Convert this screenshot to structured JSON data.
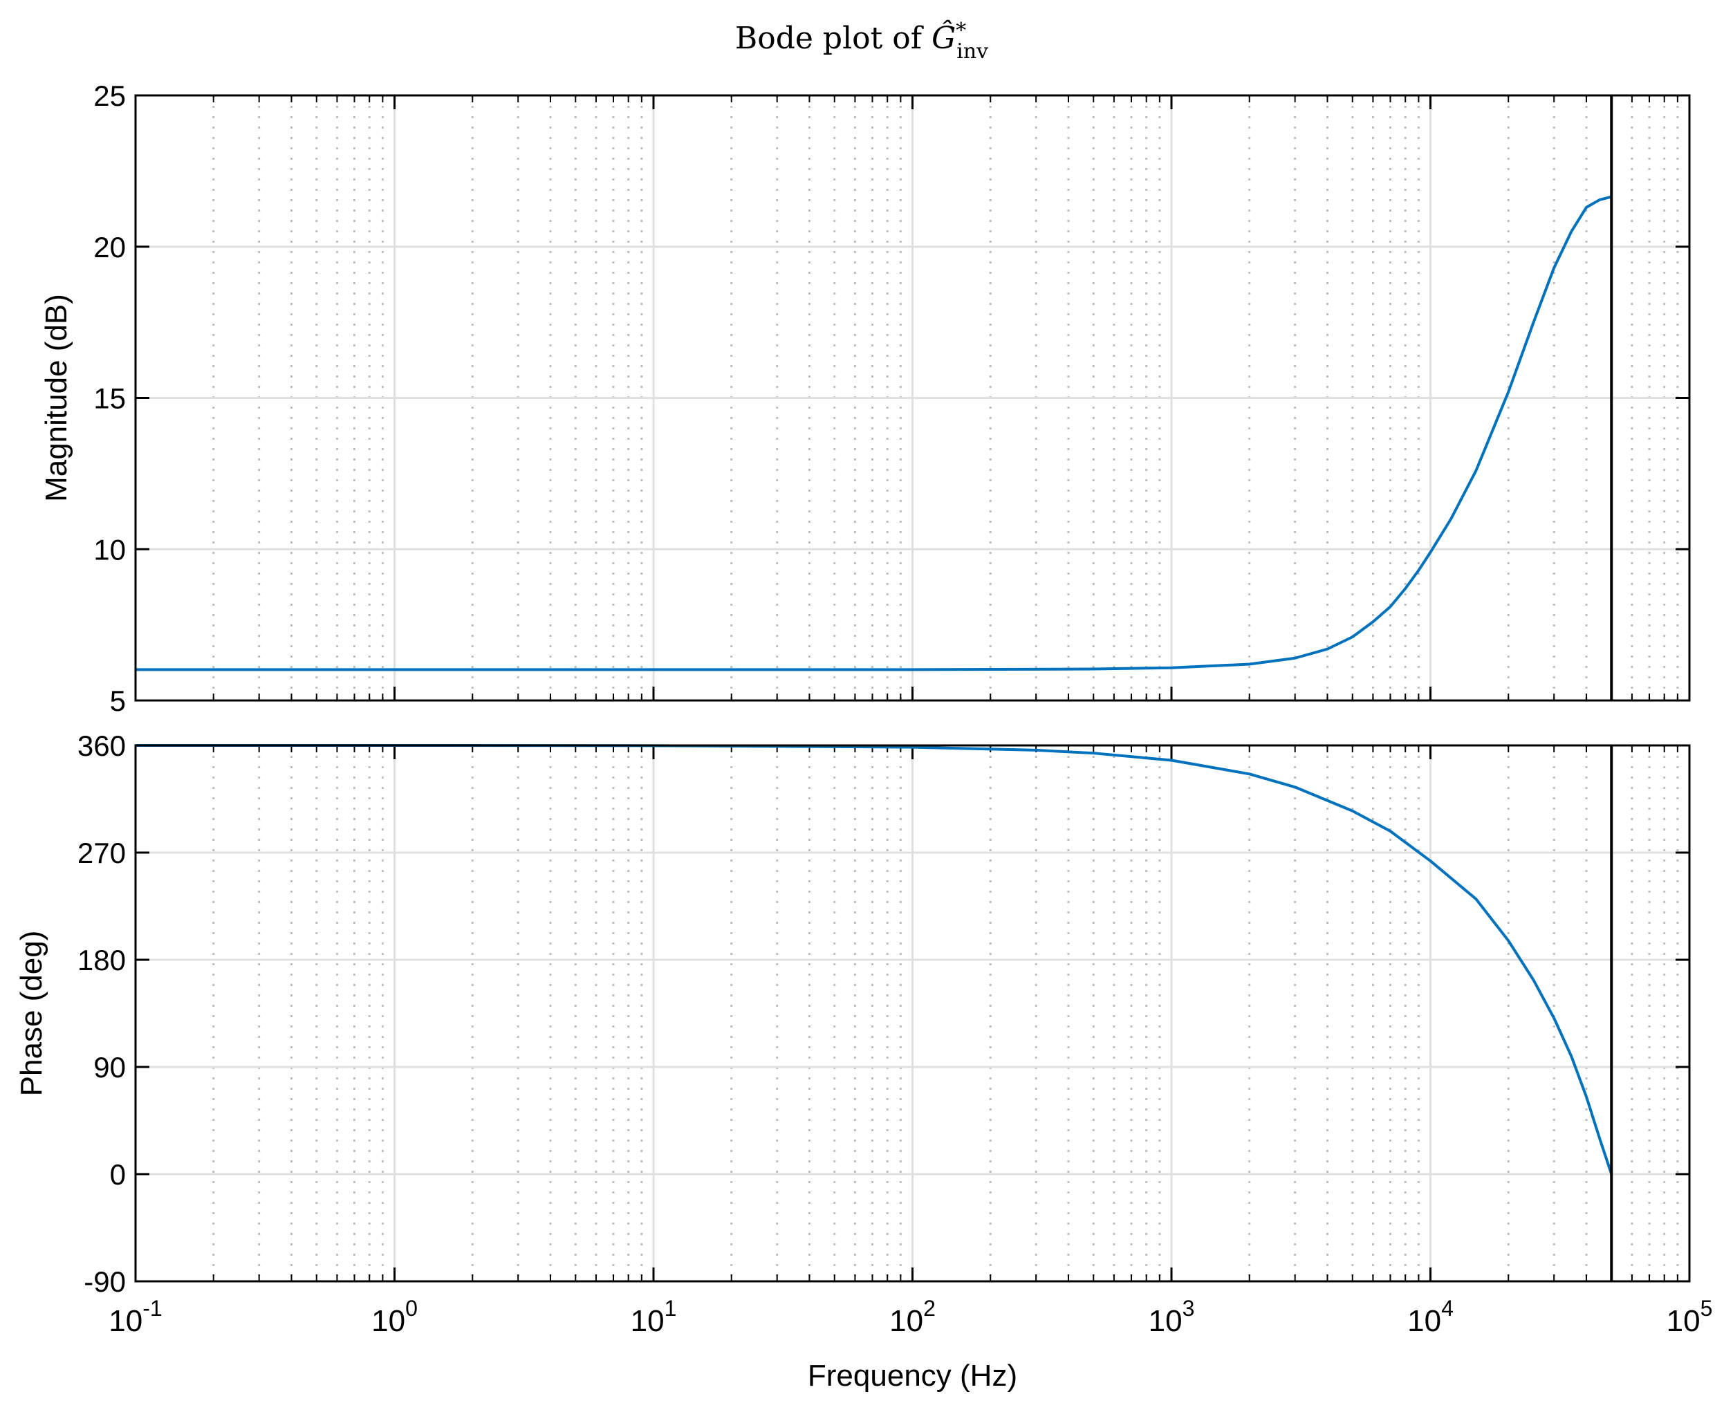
{
  "title": {
    "prefix": "Bode plot of ",
    "symbol": "Ĝ",
    "sup": "*",
    "sub": "inv"
  },
  "colors": {
    "line": "#0072BD",
    "grid": "#e0e0e0",
    "minor_grid": "#bdbdbd",
    "axes": "#000000",
    "marker": "#000000"
  },
  "chart_data": [
    {
      "id": "magnitude",
      "type": "line",
      "xlabel": "",
      "ylabel": "Magnitude (dB)",
      "xscale": "log",
      "xlim": [
        0.1,
        100000
      ],
      "ylim": [
        5,
        25
      ],
      "yticks": [
        5,
        10,
        15,
        20,
        25
      ],
      "yticklabels": [
        "5",
        "10",
        "15",
        "20",
        "25"
      ],
      "grid": true,
      "minor_grid_x": true,
      "vertical_marker_x": 50000,
      "series": [
        {
          "x": [
            0.1,
            1,
            10,
            100,
            500,
            1000,
            2000,
            3000,
            4000,
            5000,
            6000,
            7000,
            8000,
            9000,
            10000,
            12000,
            15000,
            20000,
            25000,
            30000,
            35000,
            40000,
            45000,
            50000
          ],
          "values": [
            6.02,
            6.02,
            6.02,
            6.02,
            6.04,
            6.08,
            6.2,
            6.4,
            6.7,
            7.1,
            7.6,
            8.1,
            8.7,
            9.3,
            9.9,
            11.0,
            12.6,
            15.2,
            17.5,
            19.3,
            20.5,
            21.3,
            21.55,
            21.65
          ]
        }
      ]
    },
    {
      "id": "phase",
      "type": "line",
      "xlabel": "Frequency  (Hz)",
      "ylabel": "Phase (deg)",
      "xscale": "log",
      "xlim": [
        0.1,
        100000
      ],
      "ylim": [
        -90,
        360
      ],
      "yticks": [
        -90,
        0,
        90,
        180,
        270,
        360
      ],
      "yticklabels": [
        "-90",
        "0",
        "90",
        "180",
        "270",
        "360"
      ],
      "xticks": [
        0.1,
        1,
        10,
        100,
        1000,
        10000,
        100000
      ],
      "xticklabels": [
        {
          "base": "10",
          "exp": "-1"
        },
        {
          "base": "10",
          "exp": "0"
        },
        {
          "base": "10",
          "exp": "1"
        },
        {
          "base": "10",
          "exp": "2"
        },
        {
          "base": "10",
          "exp": "3"
        },
        {
          "base": "10",
          "exp": "4"
        },
        {
          "base": "10",
          "exp": "5"
        }
      ],
      "grid": true,
      "minor_grid_x": true,
      "vertical_marker_x": 50000,
      "series": [
        {
          "x": [
            0.1,
            1,
            10,
            100,
            300,
            500,
            1000,
            2000,
            3000,
            5000,
            7000,
            10000,
            15000,
            20000,
            25000,
            30000,
            35000,
            40000,
            45000,
            50000
          ],
          "values": [
            360,
            360,
            359.8,
            358.5,
            356,
            353.5,
            347.5,
            336,
            325,
            305,
            288,
            263,
            231,
            196,
            163,
            131,
            99,
            65,
            30,
            0
          ]
        }
      ]
    }
  ]
}
